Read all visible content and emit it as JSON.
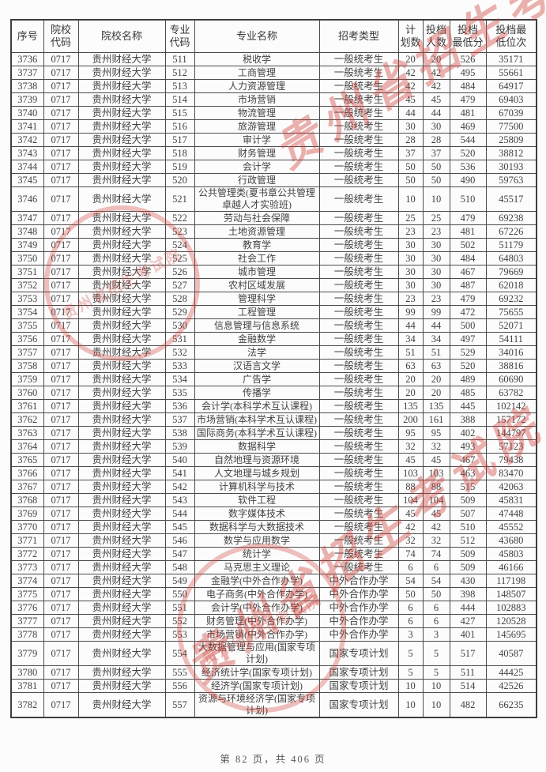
{
  "page": {
    "footer": "第 82 页，共 406 页"
  },
  "watermark": {
    "text": "贵州省招生考试院",
    "color": "#cd3f38"
  },
  "table": {
    "headers": [
      "序号",
      "院校\n代码",
      "院校名称",
      "专业\n代码",
      "专业名称",
      "招考类型",
      "计\n划数",
      "投档\n人数",
      "投档\n最低分",
      "投档最\n低位次"
    ],
    "columns": [
      "seq",
      "college_code",
      "college_name",
      "major_code",
      "major_name",
      "admission_type",
      "plan_count",
      "file_count",
      "min_score",
      "min_rank"
    ],
    "rows": [
      [
        "3736",
        "0717",
        "贵州财经大学",
        "511",
        "税收学",
        "一般统考生",
        "20",
        "20",
        "526",
        "35171"
      ],
      [
        "3737",
        "0717",
        "贵州财经大学",
        "512",
        "工商管理",
        "一般统考生",
        "42",
        "42",
        "495",
        "55661"
      ],
      [
        "3738",
        "0717",
        "贵州财经大学",
        "513",
        "人力资源管理",
        "一般统考生",
        "42",
        "42",
        "484",
        "64917"
      ],
      [
        "3739",
        "0717",
        "贵州财经大学",
        "514",
        "市场营销",
        "一般统考生",
        "45",
        "45",
        "479",
        "69403"
      ],
      [
        "3740",
        "0717",
        "贵州财经大学",
        "515",
        "物流管理",
        "一般统考生",
        "44",
        "44",
        "481",
        "67039"
      ],
      [
        "3741",
        "0717",
        "贵州财经大学",
        "516",
        "旅游管理",
        "一般统考生",
        "30",
        "30",
        "469",
        "77500"
      ],
      [
        "3742",
        "0717",
        "贵州财经大学",
        "517",
        "审计学",
        "一般统考生",
        "28",
        "28",
        "544",
        "25809"
      ],
      [
        "3743",
        "0717",
        "贵州财经大学",
        "518",
        "财务管理",
        "一般统考生",
        "37",
        "37",
        "520",
        "38812"
      ],
      [
        "3744",
        "0717",
        "贵州财经大学",
        "519",
        "会计学",
        "一般统考生",
        "50",
        "50",
        "536",
        "30193"
      ],
      [
        "3745",
        "0717",
        "贵州财经大学",
        "520",
        "行政管理",
        "一般统考生",
        "50",
        "50",
        "490",
        "59763"
      ],
      [
        "3746",
        "0717",
        "贵州财经大学",
        "521",
        "公共管理类(夏书章公共管理卓越人才实验班)",
        "一般统考生",
        "10",
        "10",
        "510",
        "45517"
      ],
      [
        "3747",
        "0717",
        "贵州财经大学",
        "522",
        "劳动与社会保障",
        "一般统考生",
        "25",
        "25",
        "479",
        "69238"
      ],
      [
        "3748",
        "0717",
        "贵州财经大学",
        "523",
        "土地资源管理",
        "一般统考生",
        "23",
        "23",
        "481",
        "67226"
      ],
      [
        "3749",
        "0717",
        "贵州财经大学",
        "524",
        "教育学",
        "一般统考生",
        "30",
        "30",
        "502",
        "51179"
      ],
      [
        "3750",
        "0717",
        "贵州财经大学",
        "525",
        "社会工作",
        "一般统考生",
        "30",
        "30",
        "484",
        "64803"
      ],
      [
        "3751",
        "0717",
        "贵州财经大学",
        "526",
        "城市管理",
        "一般统考生",
        "30",
        "30",
        "467",
        "79669"
      ],
      [
        "3752",
        "0717",
        "贵州财经大学",
        "527",
        "农村区域发展",
        "一般统考生",
        "30",
        "30",
        "487",
        "62018"
      ],
      [
        "3753",
        "0717",
        "贵州财经大学",
        "528",
        "管理科学",
        "一般统考生",
        "23",
        "23",
        "479",
        "69232"
      ],
      [
        "3754",
        "0717",
        "贵州财经大学",
        "529",
        "工程管理",
        "一般统考生",
        "99",
        "99",
        "472",
        "75655"
      ],
      [
        "3755",
        "0717",
        "贵州财经大学",
        "530",
        "信息管理与信息系统",
        "一般统考生",
        "44",
        "44",
        "500",
        "52071"
      ],
      [
        "3756",
        "0717",
        "贵州财经大学",
        "531",
        "金融数学",
        "一般统考生",
        "34",
        "34",
        "497",
        "54111"
      ],
      [
        "3757",
        "0717",
        "贵州财经大学",
        "532",
        "法学",
        "一般统考生",
        "51",
        "51",
        "529",
        "34016"
      ],
      [
        "3758",
        "0717",
        "贵州财经大学",
        "533",
        "汉语言文学",
        "一般统考生",
        "63",
        "63",
        "520",
        "38816"
      ],
      [
        "3759",
        "0717",
        "贵州财经大学",
        "534",
        "广告学",
        "一般统考生",
        "20",
        "20",
        "489",
        "60690"
      ],
      [
        "3760",
        "0717",
        "贵州财经大学",
        "535",
        "传播学",
        "一般统考生",
        "20",
        "20",
        "485",
        "63782"
      ],
      [
        "3761",
        "0717",
        "贵州财经大学",
        "536",
        "会计学(本科学术互认课程)",
        "一般统考生",
        "135",
        "135",
        "445",
        "102142"
      ],
      [
        "3762",
        "0717",
        "贵州财经大学",
        "537",
        "市场营销(本科学术互认课程)",
        "一般统考生",
        "200",
        "161",
        "388",
        "157172"
      ],
      [
        "3763",
        "0717",
        "贵州财经大学",
        "538",
        "国际商务(本科学术互认课程)",
        "一般统考生",
        "95",
        "95",
        "402",
        "144797"
      ],
      [
        "3764",
        "0717",
        "贵州财经大学",
        "539",
        "数据科学",
        "一般统考生",
        "32",
        "32",
        "493",
        "57123"
      ],
      [
        "3765",
        "0717",
        "贵州财经大学",
        "540",
        "自然地理与资源环境",
        "一般统考生",
        "45",
        "45",
        "467",
        "79438"
      ],
      [
        "3766",
        "0717",
        "贵州财经大学",
        "541",
        "人文地理与城乡规划",
        "一般统考生",
        "103",
        "103",
        "463",
        "83470"
      ],
      [
        "3767",
        "0717",
        "贵州财经大学",
        "542",
        "计算机科学与技术",
        "一般统考生",
        "88",
        "88",
        "515",
        "42063"
      ],
      [
        "3768",
        "0717",
        "贵州财经大学",
        "543",
        "软件工程",
        "一般统考生",
        "104",
        "104",
        "509",
        "45831"
      ],
      [
        "3769",
        "0717",
        "贵州财经大学",
        "544",
        "数字媒体技术",
        "一般统考生",
        "45",
        "45",
        "507",
        "47448"
      ],
      [
        "3770",
        "0717",
        "贵州财经大学",
        "545",
        "数据科学与大数据技术",
        "一般统考生",
        "42",
        "42",
        "510",
        "45552"
      ],
      [
        "3771",
        "0717",
        "贵州财经大学",
        "546",
        "数学与应用数学",
        "一般统考生",
        "32",
        "32",
        "512",
        "43680"
      ],
      [
        "3772",
        "0717",
        "贵州财经大学",
        "547",
        "统计学",
        "一般统考生",
        "74",
        "74",
        "509",
        "45803"
      ],
      [
        "3773",
        "0717",
        "贵州财经大学",
        "548",
        "马克思主义理论",
        "一般统考生",
        "6",
        "6",
        "509",
        "46166"
      ],
      [
        "3774",
        "0717",
        "贵州财经大学",
        "549",
        "金融学(中外合作办学)",
        "中外合作办学",
        "54",
        "54",
        "430",
        "117198"
      ],
      [
        "3775",
        "0717",
        "贵州财经大学",
        "550",
        "电子商务(中外合作办学)",
        "中外合作办学",
        "50",
        "50",
        "398",
        "148507"
      ],
      [
        "3776",
        "0717",
        "贵州财经大学",
        "551",
        "会计学(中外合作办学)",
        "中外合作办学",
        "6",
        "6",
        "444",
        "102883"
      ],
      [
        "3777",
        "0717",
        "贵州财经大学",
        "552",
        "财务管理(中外合作办学)",
        "中外合作办学",
        "6",
        "6",
        "427",
        "120528"
      ],
      [
        "3778",
        "0717",
        "贵州财经大学",
        "553",
        "市场营销(中外合作办学)",
        "中外合作办学",
        "3",
        "3",
        "401",
        "145695"
      ],
      [
        "3779",
        "0717",
        "贵州财经大学",
        "554",
        "大数据管理与应用(国家专项计划)",
        "国家专项计划",
        "5",
        "5",
        "517",
        "40587"
      ],
      [
        "3780",
        "0717",
        "贵州财经大学",
        "555",
        "经济统计学(国家专项计划)",
        "国家专项计划",
        "5",
        "5",
        "511",
        "44425"
      ],
      [
        "3781",
        "0717",
        "贵州财经大学",
        "556",
        "经济学(国家专项计划)",
        "国家专项计划",
        "10",
        "10",
        "514",
        "42526"
      ],
      [
        "3782",
        "0717",
        "贵州财经大学",
        "557",
        "资源与环境经济学(国家专项计划)",
        "国家专项计划",
        "10",
        "10",
        "482",
        "66235"
      ]
    ]
  }
}
